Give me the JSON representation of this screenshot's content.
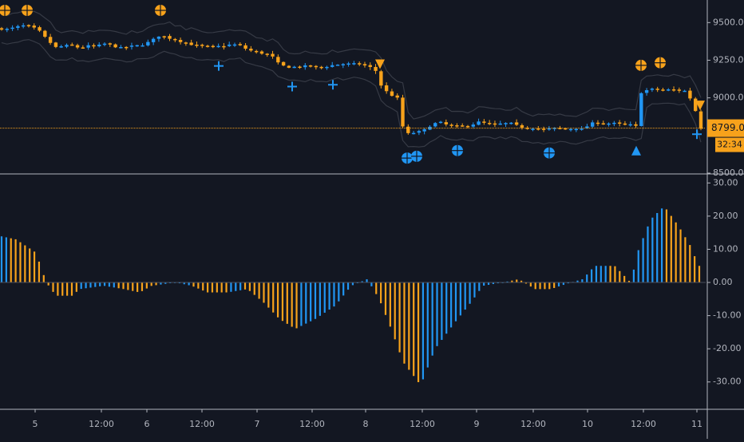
{
  "colors": {
    "background": "#131722",
    "up": "#2196f3",
    "down": "#f7a21b",
    "text": "#b2b5be",
    "axis": "#b2b5be",
    "band": "#363a45",
    "price_line": "#f7a21b",
    "price_label_bg": "#f7a21b",
    "price_label_text": "#131722"
  },
  "price_pane": {
    "yticks": [
      "9500.00",
      "9250.00",
      "9000.00",
      "8500.00"
    ],
    "ylim": [
      8500,
      9650
    ],
    "current_price": "8799.00",
    "countdown": "32:34"
  },
  "osc_pane": {
    "yticks": [
      "30.00",
      "20.00",
      "10.00",
      "0.00",
      "-10.00",
      "-20.00",
      "-30.00"
    ],
    "ylim": [
      -38,
      32
    ]
  },
  "time_axis": [
    "5",
    "12:00",
    "6",
    "12:00",
    "7",
    "12:00",
    "8",
    "12:00",
    "9",
    "12:00",
    "10",
    "12:00",
    "11"
  ],
  "chart_data": [
    {
      "type": "candlestick",
      "pane": "price",
      "x_range": [
        0,
        878
      ],
      "closes": [
        [
          0,
          9460
        ],
        [
          10,
          9455
        ],
        [
          20,
          9470
        ],
        [
          30,
          9480
        ],
        [
          40,
          9470
        ],
        [
          50,
          9440
        ],
        [
          60,
          9380
        ],
        [
          70,
          9335
        ],
        [
          80,
          9345
        ],
        [
          90,
          9350
        ],
        [
          100,
          9330
        ],
        [
          110,
          9345
        ],
        [
          120,
          9340
        ],
        [
          130,
          9360
        ],
        [
          140,
          9350
        ],
        [
          150,
          9330
        ],
        [
          160,
          9340
        ],
        [
          170,
          9345
        ],
        [
          180,
          9355
        ],
        [
          190,
          9380
        ],
        [
          200,
          9415
        ],
        [
          210,
          9400
        ],
        [
          220,
          9385
        ],
        [
          230,
          9370
        ],
        [
          240,
          9355
        ],
        [
          250,
          9345
        ],
        [
          260,
          9340
        ],
        [
          270,
          9340
        ],
        [
          280,
          9345
        ],
        [
          290,
          9355
        ],
        [
          300,
          9350
        ],
        [
          310,
          9320
        ],
        [
          320,
          9305
        ],
        [
          330,
          9295
        ],
        [
          340,
          9280
        ],
        [
          350,
          9220
        ],
        [
          360,
          9205
        ],
        [
          370,
          9205
        ],
        [
          380,
          9210
        ],
        [
          390,
          9210
        ],
        [
          400,
          9200
        ],
        [
          410,
          9210
        ],
        [
          420,
          9220
        ],
        [
          430,
          9225
        ],
        [
          440,
          9225
        ],
        [
          450,
          9225
        ],
        [
          460,
          9210
        ],
        [
          470,
          9190
        ],
        [
          475,
          9100
        ],
        [
          482,
          9050
        ],
        [
          490,
          9020
        ],
        [
          500,
          8990
        ],
        [
          505,
          8790
        ],
        [
          510,
          8760
        ],
        [
          520,
          8770
        ],
        [
          530,
          8780
        ],
        [
          540,
          8820
        ],
        [
          550,
          8840
        ],
        [
          560,
          8820
        ],
        [
          570,
          8810
        ],
        [
          580,
          8810
        ],
        [
          590,
          8820
        ],
        [
          600,
          8840
        ],
        [
          610,
          8830
        ],
        [
          620,
          8820
        ],
        [
          630,
          8830
        ],
        [
          640,
          8830
        ],
        [
          650,
          8810
        ],
        [
          660,
          8800
        ],
        [
          670,
          8800
        ],
        [
          680,
          8790
        ],
        [
          690,
          8795
        ],
        [
          700,
          8800
        ],
        [
          710,
          8790
        ],
        [
          720,
          8800
        ],
        [
          730,
          8790
        ],
        [
          740,
          8830
        ],
        [
          750,
          8835
        ],
        [
          760,
          8830
        ],
        [
          770,
          8830
        ],
        [
          780,
          8825
        ],
        [
          790,
          8820
        ],
        [
          797,
          8810
        ],
        [
          800,
          9030
        ],
        [
          810,
          9050
        ],
        [
          820,
          9060
        ],
        [
          830,
          9050
        ],
        [
          840,
          9055
        ],
        [
          850,
          9050
        ],
        [
          860,
          9045
        ],
        [
          868,
          8960
        ],
        [
          875,
          8860
        ],
        [
          878,
          8799
        ]
      ],
      "signals": [
        {
          "type": "sell-triangle",
          "x": 476
        },
        {
          "type": "sell-triangle",
          "x": 877
        },
        {
          "type": "buy-triangle",
          "x": 797
        },
        {
          "type": "buy-cross",
          "x": 274
        },
        {
          "type": "buy-cross",
          "x": 366
        },
        {
          "type": "buy-cross",
          "x": 417
        },
        {
          "type": "buy-cross",
          "x": 873
        },
        {
          "type": "sell-circle-cross",
          "x": 6
        },
        {
          "type": "sell-circle-cross",
          "x": 34
        },
        {
          "type": "sell-circle-cross",
          "x": 201
        },
        {
          "type": "sell-circle-cross",
          "x": 803
        },
        {
          "type": "sell-circle-cross",
          "x": 827
        },
        {
          "type": "buy-circle-cross",
          "x": 510
        },
        {
          "type": "buy-circle-cross",
          "x": 522
        },
        {
          "type": "buy-circle-cross",
          "x": 573
        },
        {
          "type": "buy-circle-cross",
          "x": 688
        }
      ]
    },
    {
      "type": "bar",
      "pane": "oscillator",
      "bar_count": 150,
      "values": [
        [
          0,
          14
        ],
        [
          20,
          13
        ],
        [
          45,
          9
        ],
        [
          58,
          0
        ],
        [
          70,
          -4
        ],
        [
          90,
          -4
        ],
        [
          100,
          -2
        ],
        [
          130,
          -1
        ],
        [
          155,
          -2
        ],
        [
          175,
          -3
        ],
        [
          190,
          -1
        ],
        [
          220,
          0
        ],
        [
          240,
          -1
        ],
        [
          260,
          -3
        ],
        [
          285,
          -3
        ],
        [
          310,
          -2
        ],
        [
          330,
          -6
        ],
        [
          350,
          -11
        ],
        [
          370,
          -14
        ],
        [
          395,
          -11
        ],
        [
          420,
          -7
        ],
        [
          440,
          -1
        ],
        [
          460,
          1
        ],
        [
          475,
          -5
        ],
        [
          490,
          -14
        ],
        [
          505,
          -24
        ],
        [
          527,
          -31
        ],
        [
          545,
          -20
        ],
        [
          570,
          -12
        ],
        [
          590,
          -6
        ],
        [
          605,
          -1
        ],
        [
          630,
          0
        ],
        [
          650,
          1
        ],
        [
          670,
          -2
        ],
        [
          690,
          -2
        ],
        [
          715,
          0
        ],
        [
          730,
          1
        ],
        [
          745,
          5
        ],
        [
          770,
          5
        ],
        [
          790,
          0
        ],
        [
          800,
          10
        ],
        [
          815,
          19
        ],
        [
          832,
          23
        ],
        [
          850,
          17
        ],
        [
          865,
          11
        ],
        [
          875,
          5
        ]
      ],
      "color_runs": [
        [
          0,
          "#2196f3"
        ],
        [
          8,
          "#f7a21b"
        ],
        [
          58,
          "#f7a21b"
        ],
        [
          100,
          "#2196f3"
        ],
        [
          145,
          "#f7a21b"
        ],
        [
          200,
          "#2196f3"
        ],
        [
          240,
          "#f7a21b"
        ],
        [
          285,
          "#2196f3"
        ],
        [
          305,
          "#f7a21b"
        ],
        [
          372,
          "#2196f3"
        ],
        [
          440,
          "#2196f3"
        ],
        [
          470,
          "#f7a21b"
        ],
        [
          528,
          "#2196f3"
        ],
        [
          600,
          "#2196f3"
        ],
        [
          640,
          "#f7a21b"
        ],
        [
          700,
          "#2196f3"
        ],
        [
          735,
          "#2196f3"
        ],
        [
          760,
          "#f7a21b"
        ],
        [
          790,
          "#2196f3"
        ],
        [
          833,
          "#f7a21b"
        ]
      ]
    }
  ]
}
